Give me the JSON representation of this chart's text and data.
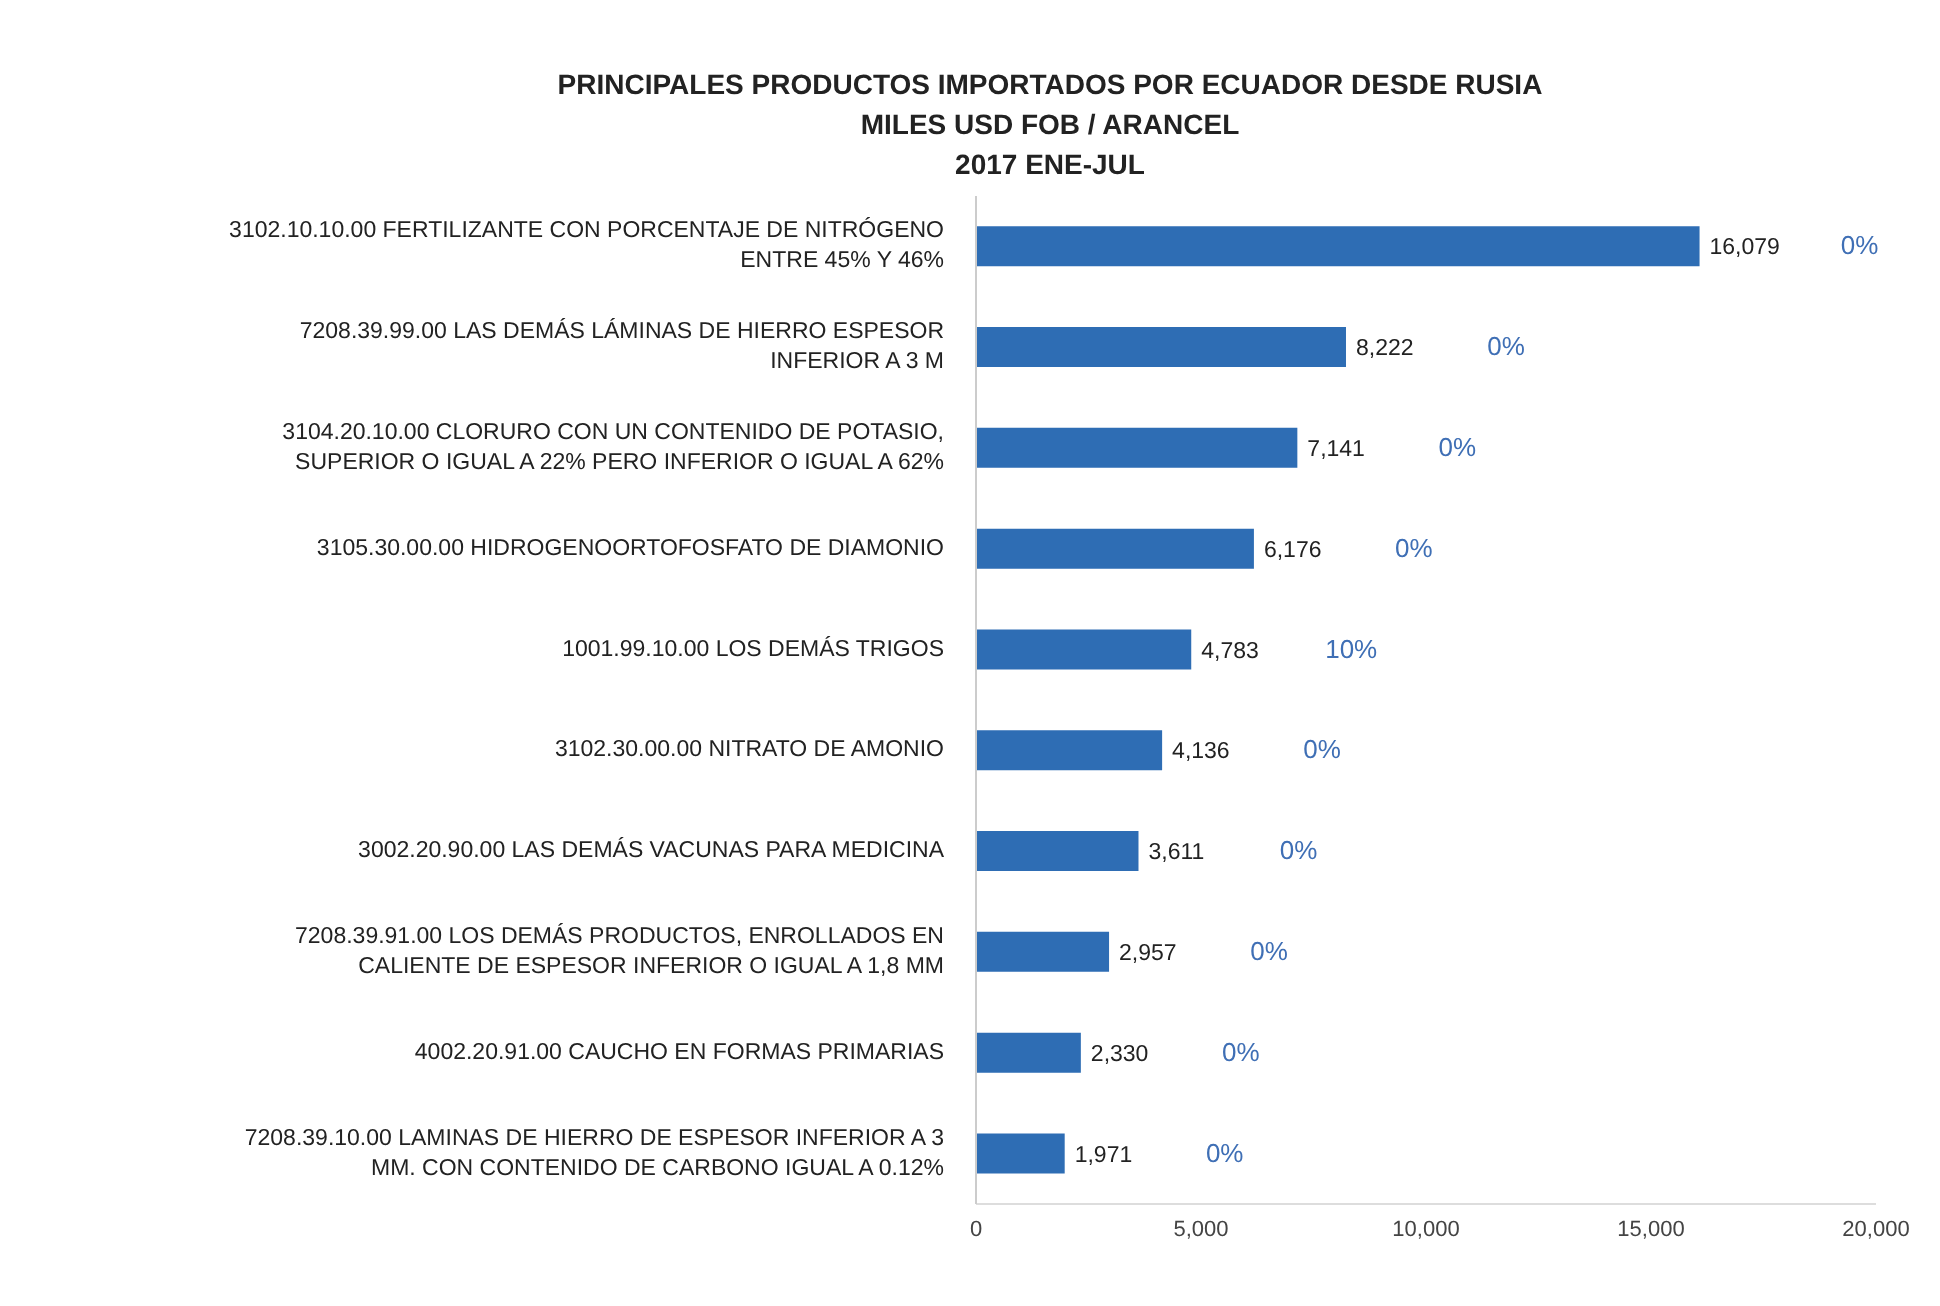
{
  "chart_data": {
    "type": "bar",
    "orientation": "horizontal",
    "title": "PRINCIPALES PRODUCTOS IMPORTADOS POR ECUADOR DESDE RUSIA",
    "subtitle": "MILES USD FOB / ARANCEL\n2017 ENE-JUL",
    "categories": [
      "3102.10.10.00 FERTILIZANTE CON PORCENTAJE DE NITRÓGENO ENTRE 45% Y 46%",
      "7208.39.99.00 LAS DEMÁS LÁMINAS DE HIERRO ESPESOR INFERIOR A 3 M",
      "3104.20.10.00 CLORURO CON UN CONTENIDO DE POTASIO, SUPERIOR O IGUAL A 22% PERO INFERIOR O IGUAL A 62%",
      "3105.30.00.00 HIDROGENOORTOFOSFATO DE DIAMONIO",
      "1001.99.10.00 LOS DEMÁS TRIGOS",
      "3102.30.00.00 NITRATO DE AMONIO",
      "3002.20.90.00 LAS DEMÁS VACUNAS PARA MEDICINA",
      "7208.39.91.00 LOS DEMÁS PRODUCTOS, ENROLLADOS EN CALIENTE DE ESPESOR INFERIOR O IGUAL A 1,8 MM",
      "4002.20.91.00 CAUCHO EN FORMAS PRIMARIAS",
      "7208.39.10.00 LAMINAS DE HIERRO DE ESPESOR INFERIOR A 3 MM. CON CONTENIDO DE CARBONO IGUAL A 0.12%"
    ],
    "values": [
      16079,
      8222,
      7141,
      6176,
      4783,
      4136,
      3611,
      2957,
      2330,
      1971
    ],
    "value_labels": [
      "16,079",
      "8,222",
      "7,141",
      "6,176",
      "4,783",
      "4,136",
      "3,611",
      "2,957",
      "2,330",
      "1,971"
    ],
    "color": "#2e6db4",
    "xlim": [
      0,
      20000
    ],
    "xticks": [
      {
        "value": 0,
        "label": "0"
      },
      {
        "value": 5000,
        "label": "5,000"
      },
      {
        "value": 10000,
        "label": "10,000"
      },
      {
        "value": 15000,
        "label": "15,000"
      },
      {
        "value": 20000,
        "label": "20,000"
      }
    ],
    "grid": false,
    "legend": false,
    "annotations": [
      "0%",
      "0%",
      "0%",
      "0%",
      "10%",
      "0%",
      "0%",
      "0%",
      "0%",
      "0%"
    ]
  }
}
